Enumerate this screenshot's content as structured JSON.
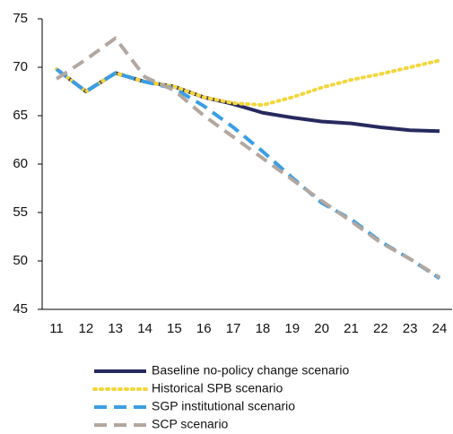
{
  "chart_data": {
    "type": "line",
    "categories": [
      "11",
      "12",
      "13",
      "14",
      "15",
      "16",
      "17",
      "18",
      "19",
      "20",
      "21",
      "22",
      "23",
      "24"
    ],
    "series": [
      {
        "name": "Baseline no-policy change scenario",
        "color": "#262a5e",
        "dash": "solid",
        "values": [
          69.8,
          67.5,
          69.4,
          68.5,
          68.0,
          66.9,
          66.2,
          65.3,
          64.8,
          64.4,
          64.2,
          63.8,
          63.5,
          63.4
        ]
      },
      {
        "name": "Historical SPB scenario",
        "color": "#f5d63a",
        "dash": "dotted",
        "values": [
          69.8,
          67.5,
          69.4,
          68.5,
          68.0,
          66.9,
          66.3,
          66.1,
          66.9,
          67.9,
          68.7,
          69.3,
          70.0,
          70.7
        ]
      },
      {
        "name": "SGP institutional scenario",
        "color": "#3a9ee4",
        "dash": "dashed",
        "values": [
          69.8,
          67.5,
          69.4,
          68.5,
          67.8,
          66.0,
          63.8,
          61.3,
          58.6,
          56.0,
          54.3,
          52.0,
          50.2,
          48.2
        ]
      },
      {
        "name": "SCP scenario",
        "color": "#b3a79f",
        "dash": "dashed",
        "values": [
          68.8,
          70.8,
          73.0,
          69.0,
          67.6,
          65.0,
          62.8,
          60.6,
          58.4,
          56.2,
          54.1,
          51.9,
          50.2,
          48.3
        ]
      }
    ],
    "ylim": [
      45,
      75
    ],
    "yticks": [
      45,
      50,
      55,
      60,
      65,
      70,
      75
    ],
    "grid": false
  }
}
